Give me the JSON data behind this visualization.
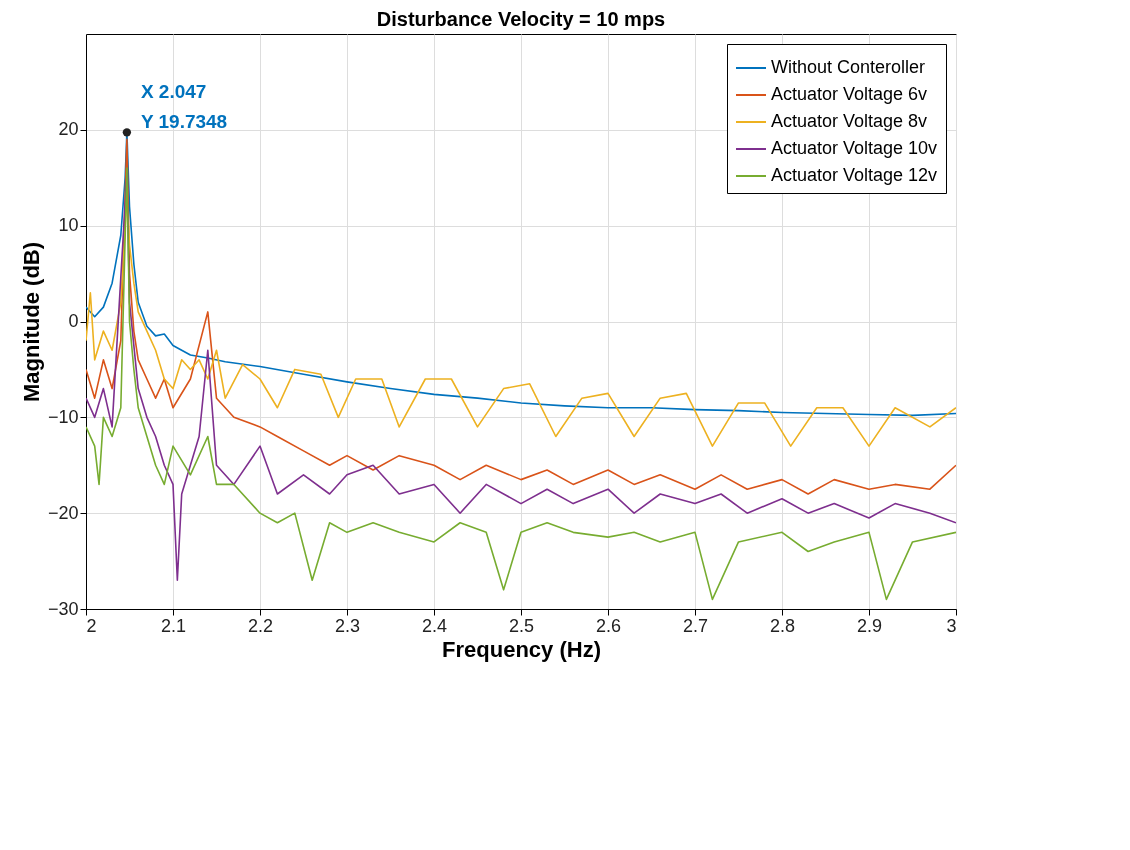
{
  "chart_data": {
    "type": "line",
    "title": "Disturbance Velocity = 10 mps",
    "xlabel": "Frequency (Hz)",
    "ylabel": "Magnitude (dB)",
    "xlim": [
      2,
      3
    ],
    "xticks": [
      2,
      2.1,
      2.2,
      2.3,
      2.4,
      2.5,
      2.6,
      2.7,
      2.8,
      2.9,
      3
    ],
    "ylim": [
      -30,
      30
    ],
    "yticks": [
      -30,
      -20,
      -10,
      0,
      10,
      20
    ],
    "grid": true,
    "legend": "top right",
    "line_style": "solid",
    "marker": "none",
    "annotations": [
      {
        "text": "X 2.047\nY 19.7348",
        "x": 2.047,
        "y": 19.7348
      }
    ],
    "series": [
      {
        "name": "Without Conteroller",
        "color": "#0072bd",
        "x": [
          2.0,
          2.005,
          2.01,
          2.02,
          2.03,
          2.04,
          2.045,
          2.047,
          2.05,
          2.055,
          2.06,
          2.07,
          2.08,
          2.09,
          2.1,
          2.12,
          2.14,
          2.16,
          2.2,
          2.25,
          2.3,
          2.35,
          2.4,
          2.45,
          2.5,
          2.55,
          2.6,
          2.65,
          2.7,
          2.75,
          2.8,
          2.85,
          2.9,
          2.95,
          3.0
        ],
        "values": [
          1.5,
          1,
          0.5,
          1.5,
          4,
          9,
          15,
          19.7348,
          12,
          6,
          2,
          -0.5,
          -1.5,
          -1.3,
          -2.5,
          -3.5,
          -3.8,
          -4.2,
          -4.7,
          -5.5,
          -6.3,
          -7,
          -7.6,
          -8,
          -8.5,
          -8.8,
          -9,
          -9,
          -9.2,
          -9.3,
          -9.5,
          -9.6,
          -9.7,
          -9.8,
          -9.6
        ]
      },
      {
        "name": "Actuator Voltage 6v",
        "color": "#d95319",
        "x": [
          2.0,
          2.01,
          2.02,
          2.03,
          2.04,
          2.047,
          2.05,
          2.055,
          2.06,
          2.07,
          2.08,
          2.09,
          2.1,
          2.12,
          2.14,
          2.15,
          2.17,
          2.2,
          2.22,
          2.25,
          2.28,
          2.3,
          2.33,
          2.36,
          2.4,
          2.43,
          2.46,
          2.5,
          2.53,
          2.56,
          2.6,
          2.63,
          2.66,
          2.7,
          2.73,
          2.76,
          2.8,
          2.83,
          2.86,
          2.9,
          2.93,
          2.97,
          3.0
        ],
        "values": [
          -5,
          -8,
          -4,
          -7,
          -2,
          19,
          5,
          -1,
          -4,
          -6,
          -8,
          -6,
          -9,
          -6,
          1,
          -8,
          -10,
          -11,
          -12,
          -13.5,
          -15,
          -14,
          -15.5,
          -14,
          -15,
          -16.5,
          -15,
          -16.5,
          -15.5,
          -17,
          -15.5,
          -17,
          -16,
          -17.5,
          -16,
          -17.5,
          -16.5,
          -18,
          -16.5,
          -17.5,
          -17,
          -17.5,
          -15
        ]
      },
      {
        "name": "Actuator Voltage 8v",
        "color": "#edb120",
        "x": [
          2.0,
          2.005,
          2.01,
          2.02,
          2.03,
          2.04,
          2.047,
          2.05,
          2.055,
          2.06,
          2.07,
          2.08,
          2.09,
          2.1,
          2.11,
          2.12,
          2.13,
          2.14,
          2.15,
          2.16,
          2.18,
          2.2,
          2.22,
          2.24,
          2.27,
          2.29,
          2.31,
          2.34,
          2.36,
          2.39,
          2.42,
          2.45,
          2.48,
          2.51,
          2.54,
          2.57,
          2.6,
          2.63,
          2.66,
          2.69,
          2.72,
          2.75,
          2.78,
          2.81,
          2.84,
          2.87,
          2.9,
          2.93,
          2.97,
          3.0
        ],
        "values": [
          -2,
          3,
          -4,
          -1,
          -3,
          2,
          13,
          8,
          4,
          1,
          -1,
          -3,
          -6,
          -7,
          -4,
          -5,
          -4,
          -6,
          -3,
          -8,
          -4.5,
          -6,
          -9,
          -5,
          -5.5,
          -10,
          -6,
          -6,
          -11,
          -6,
          -6,
          -11,
          -7,
          -6.5,
          -12,
          -8,
          -7.5,
          -12,
          -8,
          -7.5,
          -13,
          -8.5,
          -8.5,
          -13,
          -9,
          -9,
          -13,
          -9,
          -11,
          -9
        ]
      },
      {
        "name": "Actuator Voltage 10v",
        "color": "#7e2f8e",
        "x": [
          2.0,
          2.01,
          2.02,
          2.03,
          2.047,
          2.05,
          2.06,
          2.07,
          2.08,
          2.09,
          2.1,
          2.105,
          2.11,
          2.12,
          2.13,
          2.14,
          2.15,
          2.17,
          2.2,
          2.22,
          2.25,
          2.28,
          2.3,
          2.33,
          2.36,
          2.4,
          2.43,
          2.46,
          2.5,
          2.53,
          2.56,
          2.6,
          2.63,
          2.66,
          2.7,
          2.73,
          2.76,
          2.8,
          2.83,
          2.86,
          2.9,
          2.93,
          2.97,
          3.0
        ],
        "values": [
          -8,
          -10,
          -7,
          -11,
          15.5,
          2,
          -7,
          -10,
          -12,
          -15,
          -17,
          -27,
          -18,
          -15,
          -12,
          -3,
          -15,
          -17,
          -13,
          -18,
          -16,
          -18,
          -16,
          -15,
          -18,
          -17,
          -20,
          -17,
          -19,
          -17.5,
          -19,
          -17.5,
          -20,
          -18,
          -19,
          -18,
          -20,
          -18.5,
          -20,
          -19,
          -20.5,
          -19,
          -20,
          -21
        ]
      },
      {
        "name": "Actuator Voltage 12v",
        "color": "#77ac30",
        "x": [
          2.0,
          2.01,
          2.015,
          2.02,
          2.03,
          2.04,
          2.047,
          2.05,
          2.055,
          2.06,
          2.07,
          2.08,
          2.09,
          2.1,
          2.12,
          2.14,
          2.15,
          2.17,
          2.2,
          2.22,
          2.24,
          2.26,
          2.28,
          2.3,
          2.33,
          2.36,
          2.4,
          2.43,
          2.46,
          2.48,
          2.5,
          2.53,
          2.56,
          2.6,
          2.63,
          2.66,
          2.7,
          2.72,
          2.75,
          2.8,
          2.83,
          2.86,
          2.9,
          2.92,
          2.95,
          3.0
        ],
        "values": [
          -11,
          -13,
          -17,
          -10,
          -12,
          -9,
          16,
          0,
          -5,
          -9,
          -12,
          -15,
          -17,
          -13,
          -16,
          -12,
          -17,
          -17,
          -20,
          -21,
          -20,
          -27,
          -21,
          -22,
          -21,
          -22,
          -23,
          -21,
          -22,
          -28,
          -22,
          -21,
          -22,
          -22.5,
          -22,
          -23,
          -22,
          -29,
          -23,
          -22,
          -24,
          -23,
          -22,
          -29,
          -23,
          -22
        ]
      }
    ]
  }
}
